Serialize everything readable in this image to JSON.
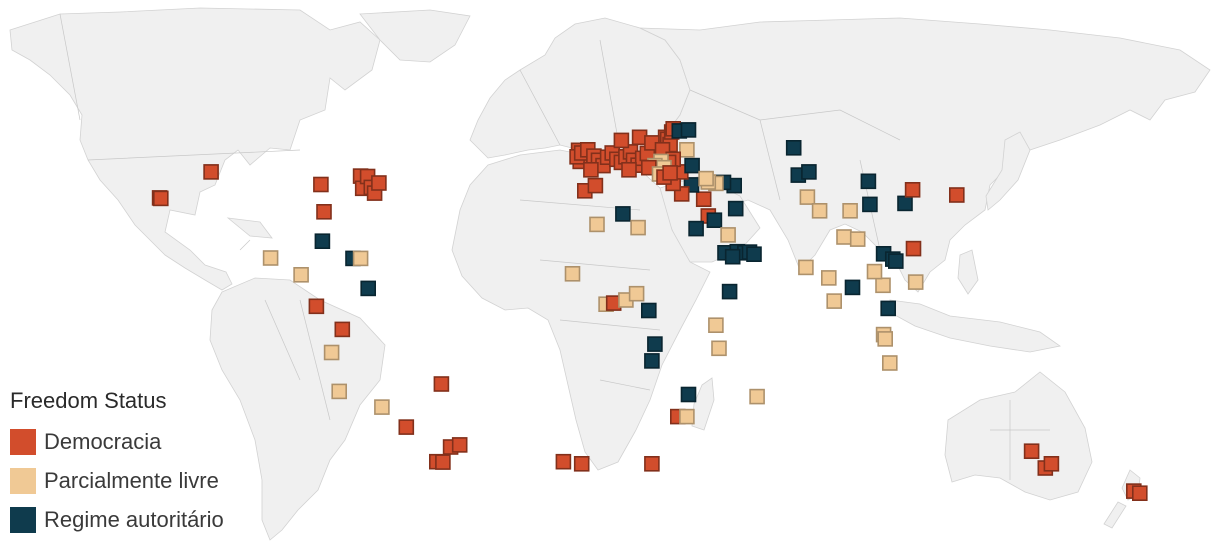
{
  "legend": {
    "title": "Freedom Status",
    "items": [
      {
        "key": "dem",
        "label": "Democracia",
        "color": "#d24d2c"
      },
      {
        "key": "par",
        "label": "Parcialmente livre",
        "color": "#f0c995"
      },
      {
        "key": "aut",
        "label": "Regime autoritário",
        "color": "#0f3b4d"
      }
    ]
  },
  "markers": [
    {
      "lon": -127.5,
      "lat": 51.0,
      "s": "dem"
    },
    {
      "lon": -144.4,
      "lat": 38.6,
      "s": "dem"
    },
    {
      "lon": -144.0,
      "lat": 38.4,
      "s": "dem"
    },
    {
      "lon": -91.5,
      "lat": 45.0,
      "s": "dem"
    },
    {
      "lon": -90.5,
      "lat": 32.0,
      "s": "dem"
    },
    {
      "lon": -78.5,
      "lat": 49.0,
      "s": "dem"
    },
    {
      "lon": -77.8,
      "lat": 43.2,
      "s": "dem"
    },
    {
      "lon": -76.2,
      "lat": 48.8,
      "s": "dem"
    },
    {
      "lon": -75.0,
      "lat": 43.6,
      "s": "dem"
    },
    {
      "lon": -73.9,
      "lat": 40.9,
      "s": "dem"
    },
    {
      "lon": -72.5,
      "lat": 45.7,
      "s": "dem"
    },
    {
      "lon": -91.0,
      "lat": 18.0,
      "s": "aut"
    },
    {
      "lon": -108.0,
      "lat": 10.0,
      "s": "par"
    },
    {
      "lon": -98.0,
      "lat": 2.0,
      "s": "par"
    },
    {
      "lon": -81.0,
      "lat": 9.8,
      "s": "aut"
    },
    {
      "lon": -78.5,
      "lat": 9.8,
      "s": "par"
    },
    {
      "lon": -76.0,
      "lat": -4.5,
      "s": "aut"
    },
    {
      "lon": -93.0,
      "lat": -13.0,
      "s": "dem"
    },
    {
      "lon": -84.5,
      "lat": -24.0,
      "s": "dem"
    },
    {
      "lon": -88.0,
      "lat": -35.0,
      "s": "par"
    },
    {
      "lon": -85.5,
      "lat": -53.5,
      "s": "par"
    },
    {
      "lon": -71.5,
      "lat": -61.0,
      "s": "par"
    },
    {
      "lon": -52.0,
      "lat": -50.0,
      "s": "dem"
    },
    {
      "lon": -63.5,
      "lat": -70.5,
      "s": "dem"
    },
    {
      "lon": -49.0,
      "lat": -80.0,
      "s": "dem"
    },
    {
      "lon": -46.0,
      "lat": -79.0,
      "s": "dem"
    },
    {
      "lon": -53.5,
      "lat": -87.0,
      "s": "dem"
    },
    {
      "lon": -51.5,
      "lat": -87.2,
      "s": "dem"
    },
    {
      "lon": -7.0,
      "lat": 61.3,
      "s": "dem"
    },
    {
      "lon": -5.0,
      "lat": 42.0,
      "s": "dem"
    },
    {
      "lon": -1.5,
      "lat": 44.5,
      "s": "dem"
    },
    {
      "lon": 7.5,
      "lat": 31.0,
      "s": "aut"
    },
    {
      "lon": -1.0,
      "lat": 26.0,
      "s": "par"
    },
    {
      "lon": 12.5,
      "lat": 24.5,
      "s": "par"
    },
    {
      "lon": -9.0,
      "lat": 2.5,
      "s": "par"
    },
    {
      "lon": 2.0,
      "lat": -12.0,
      "s": "par"
    },
    {
      "lon": 4.5,
      "lat": -11.5,
      "s": "dem"
    },
    {
      "lon": 8.5,
      "lat": -10.0,
      "s": "par"
    },
    {
      "lon": 12.0,
      "lat": -7.0,
      "s": "par"
    },
    {
      "lon": 16.0,
      "lat": -15.0,
      "s": "aut"
    },
    {
      "lon": 18.0,
      "lat": -31.0,
      "s": "aut"
    },
    {
      "lon": 17.0,
      "lat": -39.0,
      "s": "aut"
    },
    {
      "lon": 29.0,
      "lat": -55.0,
      "s": "aut"
    },
    {
      "lon": 25.5,
      "lat": -65.5,
      "s": "dem"
    },
    {
      "lon": 28.5,
      "lat": -65.5,
      "s": "par"
    },
    {
      "lon": 17.0,
      "lat": -88.0,
      "s": "dem"
    },
    {
      "lon": 38.0,
      "lat": -22.0,
      "s": "par"
    },
    {
      "lon": 39.0,
      "lat": -33.0,
      "s": "par"
    },
    {
      "lon": 42.5,
      "lat": -6.0,
      "s": "aut"
    },
    {
      "lon": 51.5,
      "lat": -56.0,
      "s": "par"
    },
    {
      "lon": 34.0,
      "lat": 38.0,
      "s": "dem"
    },
    {
      "lon": 35.5,
      "lat": 30.0,
      "s": "dem"
    },
    {
      "lon": 37.5,
      "lat": 28.0,
      "s": "aut"
    },
    {
      "lon": 31.5,
      "lat": 24.0,
      "s": "aut"
    },
    {
      "lon": 42.0,
      "lat": 21.0,
      "s": "par"
    },
    {
      "lon": 41.0,
      "lat": 12.5,
      "s": "aut"
    },
    {
      "lon": 45.0,
      "lat": 13.0,
      "s": "aut"
    },
    {
      "lon": 47.5,
      "lat": 12.5,
      "s": "aut"
    },
    {
      "lon": 49.0,
      "lat": 12.8,
      "s": "aut"
    },
    {
      "lon": 50.5,
      "lat": 11.8,
      "s": "aut"
    },
    {
      "lon": 43.5,
      "lat": 10.6,
      "s": "aut"
    },
    {
      "lon": 44.5,
      "lat": 33.5,
      "s": "aut"
    },
    {
      "lon": 44.0,
      "lat": 44.5,
      "s": "aut"
    },
    {
      "lon": 40.5,
      "lat": 46.0,
      "s": "aut"
    },
    {
      "lon": 38.0,
      "lat": 45.5,
      "s": "par"
    },
    {
      "lon": 30.0,
      "lat": 44.8,
      "s": "aut"
    },
    {
      "lon": 26.8,
      "lat": 40.5,
      "s": "dem"
    },
    {
      "lon": 24.0,
      "lat": 45.5,
      "s": "dem"
    },
    {
      "lon": 26.5,
      "lat": 51.0,
      "s": "dem"
    },
    {
      "lon": 30.2,
      "lat": 54.0,
      "s": "aut"
    },
    {
      "lon": 35.5,
      "lat": 46.2,
      "s": "par"
    },
    {
      "lon": 34.8,
      "lat": 47.8,
      "s": "par"
    },
    {
      "lon": 28.5,
      "lat": 61.5,
      "s": "par"
    },
    {
      "lon": -6.5,
      "lat": 56.0,
      "s": "dem"
    },
    {
      "lon": -7.5,
      "lat": 58.2,
      "s": "dem"
    },
    {
      "lon": -6.0,
      "lat": 60.0,
      "s": "dem"
    },
    {
      "lon": -4.0,
      "lat": 61.5,
      "s": "dem"
    },
    {
      "lon": -2.0,
      "lat": 58.5,
      "s": "dem"
    },
    {
      "lon": -0.5,
      "lat": 56.5,
      "s": "dem"
    },
    {
      "lon": 1.0,
      "lat": 54.0,
      "s": "dem"
    },
    {
      "lon": 2.5,
      "lat": 58.0,
      "s": "dem"
    },
    {
      "lon": 4.0,
      "lat": 60.0,
      "s": "dem"
    },
    {
      "lon": 5.5,
      "lat": 57.0,
      "s": "dem"
    },
    {
      "lon": 7.0,
      "lat": 55.5,
      "s": "dem"
    },
    {
      "lon": 8.5,
      "lat": 58.2,
      "s": "dem"
    },
    {
      "lon": 10.0,
      "lat": 60.5,
      "s": "dem"
    },
    {
      "lon": 11.0,
      "lat": 56.5,
      "s": "dem"
    },
    {
      "lon": 12.5,
      "lat": 54.2,
      "s": "dem"
    },
    {
      "lon": 14.0,
      "lat": 57.5,
      "s": "dem"
    },
    {
      "lon": 15.5,
      "lat": 59.8,
      "s": "dem"
    },
    {
      "lon": -3.0,
      "lat": 52.0,
      "s": "dem"
    },
    {
      "lon": 9.5,
      "lat": 52.0,
      "s": "dem"
    },
    {
      "lon": 7.0,
      "lat": 66.0,
      "s": "dem"
    },
    {
      "lon": 13.0,
      "lat": 67.5,
      "s": "dem"
    },
    {
      "lon": 21.5,
      "lat": 67.5,
      "s": "dem"
    },
    {
      "lon": 17.0,
      "lat": 64.8,
      "s": "dem"
    },
    {
      "lon": 22.2,
      "lat": 66.5,
      "s": "dem"
    },
    {
      "lon": 23.0,
      "lat": 64.0,
      "s": "dem"
    },
    {
      "lon": 20.5,
      "lat": 61.5,
      "s": "dem"
    },
    {
      "lon": 23.5,
      "lat": 70.0,
      "s": "dem"
    },
    {
      "lon": 24.0,
      "lat": 71.5,
      "s": "dem"
    },
    {
      "lon": 26.0,
      "lat": 70.5,
      "s": "aut"
    },
    {
      "lon": 29.0,
      "lat": 71.0,
      "s": "aut"
    },
    {
      "lon": 24.0,
      "lat": 57.0,
      "s": "dem"
    },
    {
      "lon": 22.5,
      "lat": 55.5,
      "s": "dem"
    },
    {
      "lon": 20.0,
      "lat": 56.0,
      "s": "par"
    },
    {
      "lon": 18.0,
      "lat": 54.0,
      "s": "par"
    },
    {
      "lon": 21.0,
      "lat": 53.0,
      "s": "par"
    },
    {
      "lon": 16.0,
      "lat": 53.0,
      "s": "dem"
    },
    {
      "lon": 19.5,
      "lat": 50.0,
      "s": "par"
    },
    {
      "lon": 21.0,
      "lat": 48.5,
      "s": "dem"
    },
    {
      "lon": 23.0,
      "lat": 50.5,
      "s": "dem"
    },
    {
      "lon": 63.5,
      "lat": 62.5,
      "s": "aut"
    },
    {
      "lon": 65.0,
      "lat": 49.5,
      "s": "aut"
    },
    {
      "lon": 68.5,
      "lat": 51.0,
      "s": "aut"
    },
    {
      "lon": 68.0,
      "lat": 39.0,
      "s": "par"
    },
    {
      "lon": 72.0,
      "lat": 32.5,
      "s": "par"
    },
    {
      "lon": 82.0,
      "lat": 32.5,
      "s": "par"
    },
    {
      "lon": 80.0,
      "lat": 20.0,
      "s": "par"
    },
    {
      "lon": 84.5,
      "lat": 19.0,
      "s": "par"
    },
    {
      "lon": 67.5,
      "lat": 5.5,
      "s": "par"
    },
    {
      "lon": 75.0,
      "lat": 0.5,
      "s": "par"
    },
    {
      "lon": 76.8,
      "lat": -10.5,
      "s": "par"
    },
    {
      "lon": 88.0,
      "lat": 46.5,
      "s": "aut"
    },
    {
      "lon": 88.5,
      "lat": 35.5,
      "s": "aut"
    },
    {
      "lon": 82.8,
      "lat": -4.0,
      "s": "aut"
    },
    {
      "lon": 93.0,
      "lat": 12.0,
      "s": "aut"
    },
    {
      "lon": 92.8,
      "lat": -3.0,
      "s": "par"
    },
    {
      "lon": 94.5,
      "lat": -14.0,
      "s": "aut"
    },
    {
      "lon": 90.0,
      "lat": 3.5,
      "s": "par"
    },
    {
      "lon": 93.0,
      "lat": -26.5,
      "s": "par"
    },
    {
      "lon": 93.5,
      "lat": -28.5,
      "s": "par"
    },
    {
      "lon": 95.0,
      "lat": -40.0,
      "s": "par"
    },
    {
      "lon": 96.0,
      "lat": 9.5,
      "s": "aut"
    },
    {
      "lon": 97.0,
      "lat": 8.5,
      "s": "aut"
    },
    {
      "lon": 100.0,
      "lat": 36.0,
      "s": "aut"
    },
    {
      "lon": 102.5,
      "lat": 42.5,
      "s": "dem"
    },
    {
      "lon": 102.8,
      "lat": 14.5,
      "s": "dem"
    },
    {
      "lon": 103.5,
      "lat": -1.5,
      "s": "par"
    },
    {
      "lon": 117.0,
      "lat": 40.0,
      "s": "dem"
    },
    {
      "lon": -6.0,
      "lat": -88.0,
      "s": "dem"
    },
    {
      "lon": -12.0,
      "lat": -87.0,
      "s": "dem"
    },
    {
      "lon": 141.5,
      "lat": -82.0,
      "s": "dem"
    },
    {
      "lon": 146.0,
      "lat": -90.0,
      "s": "dem"
    },
    {
      "lon": 148.0,
      "lat": -88.0,
      "s": "dem"
    },
    {
      "lon": 175.0,
      "lat": -101.0,
      "s": "dem"
    },
    {
      "lon": 177.0,
      "lat": -102.0,
      "s": "dem"
    }
  ]
}
